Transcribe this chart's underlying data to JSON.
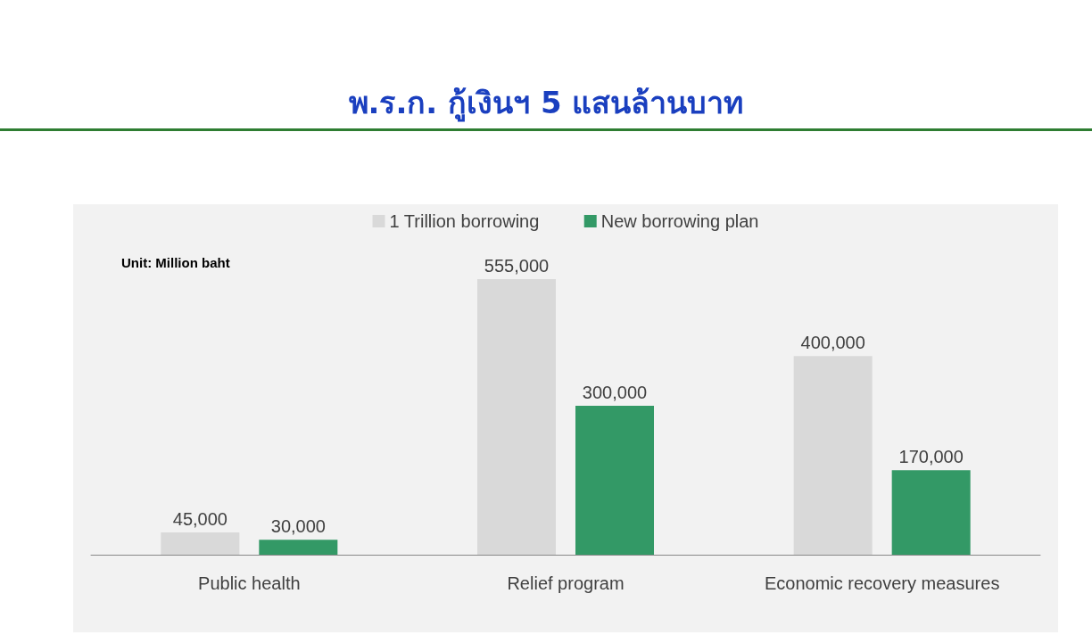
{
  "chart_data": {
    "type": "bar",
    "title": "พ.ร.ก. กู้เงินฯ 5 แสนล้านบาท",
    "categories": [
      "Public health",
      "Relief program",
      "Economic recovery measures"
    ],
    "series": [
      {
        "name": "1 Trillion borrowing",
        "color": "#d9d9d9",
        "values": [
          45000,
          555000,
          400000
        ],
        "value_labels": [
          "45,000",
          "555,000",
          "400,000"
        ]
      },
      {
        "name": "New borrowing plan",
        "color": "#339966",
        "values": [
          30000,
          300000,
          170000
        ],
        "value_labels": [
          "30,000",
          "300,000",
          "170,000"
        ]
      }
    ],
    "annotations": [
      "Unit: Million baht"
    ],
    "legend": "top"
  }
}
